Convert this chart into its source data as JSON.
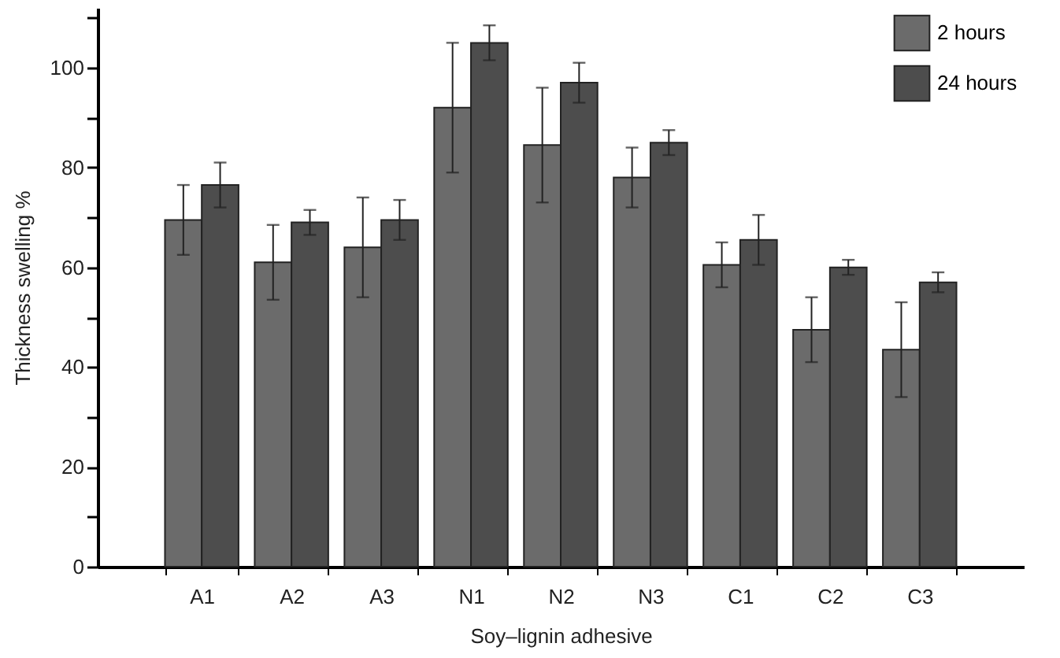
{
  "chart_data": {
    "type": "bar",
    "xlabel": "Soy–lignin adhesive",
    "ylabel": "Thickness swelling %",
    "categories": [
      "A1",
      "A2",
      "A3",
      "N1",
      "N2",
      "N3",
      "C1",
      "C2",
      "C3"
    ],
    "series": [
      {
        "name": "2 hours",
        "color": "#6b6b6b",
        "values": [
          69.5,
          61,
          64,
          92,
          84.5,
          78,
          60.5,
          47.5,
          43.5
        ],
        "errors": [
          7,
          7.5,
          10,
          13,
          11.5,
          6,
          4.5,
          6.5,
          9.5
        ]
      },
      {
        "name": "24 hours",
        "color": "#4d4d4d",
        "values": [
          76.5,
          69,
          69.5,
          105,
          97,
          85,
          65.5,
          60,
          57
        ],
        "errors": [
          4.5,
          2.5,
          4,
          3.5,
          4,
          2.5,
          5,
          1.5,
          2
        ]
      }
    ],
    "ylim": [
      0,
      112
    ],
    "yticks": [
      0,
      {
        "value": 10,
        "label": null
      },
      20,
      {
        "value": 30,
        "label": null
      },
      40,
      {
        "value": 50,
        "label": null
      },
      60,
      {
        "value": 70,
        "label": null
      },
      80,
      {
        "value": 90,
        "label": null
      },
      100,
      {
        "value": 110,
        "label": null
      }
    ],
    "grid": false,
    "legend": "top right"
  }
}
